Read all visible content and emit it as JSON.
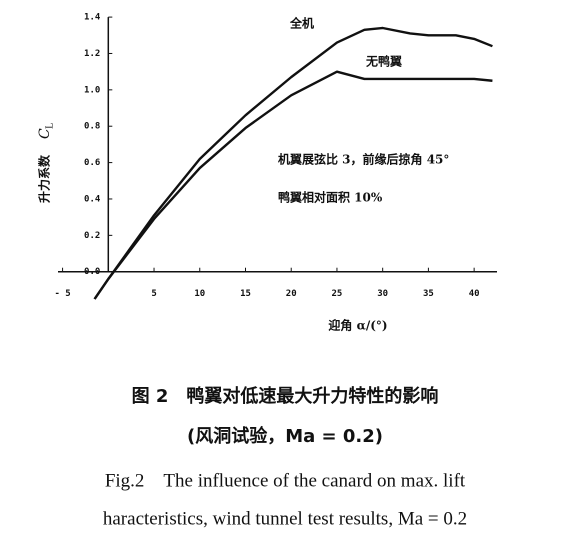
{
  "chart_data": {
    "type": "line",
    "ylabel": "升力系数",
    "ylabel_symbol": "C",
    "ylabel_subscript": "L",
    "xlabel": "迎角 α/(°)",
    "x": [
      -1.5,
      0,
      5,
      10,
      15,
      20,
      25,
      28,
      30,
      33,
      35,
      38,
      40,
      42
    ],
    "series": [
      {
        "name": "全机",
        "color": "#111111",
        "values": [
          -0.15,
          -0.04,
          0.31,
          0.62,
          0.86,
          1.07,
          1.26,
          1.33,
          1.34,
          1.31,
          1.3,
          1.3,
          1.28,
          1.24
        ]
      },
      {
        "name": "无鸭翼",
        "color": "#111111",
        "values": [
          -0.15,
          -0.04,
          0.29,
          0.57,
          0.79,
          0.97,
          1.1,
          1.06,
          1.06,
          1.06,
          1.06,
          1.06,
          1.06,
          1.05
        ]
      }
    ],
    "annotations": [
      "机翼展弦比 3，前缘后掠角 45°",
      "鸭翼相对面积 10%"
    ],
    "xlim": [
      -5.5,
      42.5
    ],
    "ylim": [
      -0.15,
      1.45
    ],
    "xticks": [
      {
        "value": -5,
        "label": "- 5"
      },
      5,
      10,
      15,
      20,
      25,
      30,
      35,
      40
    ],
    "yticks": [
      {
        "value": 0,
        "label": "0.0"
      },
      0.2,
      0.4,
      0.6,
      0.8,
      {
        "value": 1,
        "label": "1.0"
      },
      1.2,
      1.4
    ]
  },
  "caption": {
    "zh_line1": "图 2　鸭翼对低速最大升力特性的影响",
    "zh_line2": "(风洞试验，Ma = 0.2)",
    "en_line1": "Fig.2　The influence of the canard on max. lift",
    "en_line2": "haracteristics, wind tunnel test results, Ma = 0.2"
  }
}
